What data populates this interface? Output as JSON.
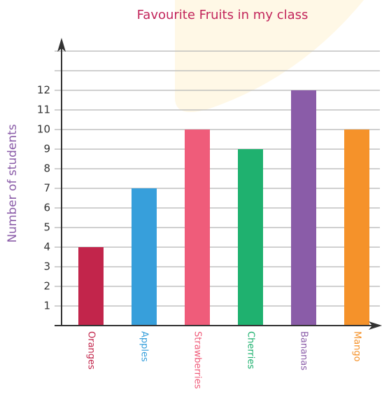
{
  "chart_data": {
    "type": "bar",
    "title": "Favourite Fruits in my class",
    "y_label": "Number of students",
    "categories": [
      "Oranges",
      "Apples",
      "Strawberries",
      "Cherries",
      "Bananas",
      "Mango"
    ],
    "values": [
      4,
      7,
      10,
      9,
      12,
      10
    ],
    "colors": [
      "#c2254b",
      "#379fdb",
      "#ef5c7a",
      "#1fb16f",
      "#8a5ca8",
      "#f5922a"
    ],
    "ylim": [
      0,
      14
    ],
    "yticks": [
      1,
      2,
      3,
      4,
      5,
      6,
      7,
      8,
      9,
      10,
      11,
      12
    ],
    "grid_lines": [
      1,
      2,
      3,
      4,
      5,
      6,
      7,
      8,
      9,
      10,
      11,
      12,
      13,
      14
    ]
  }
}
